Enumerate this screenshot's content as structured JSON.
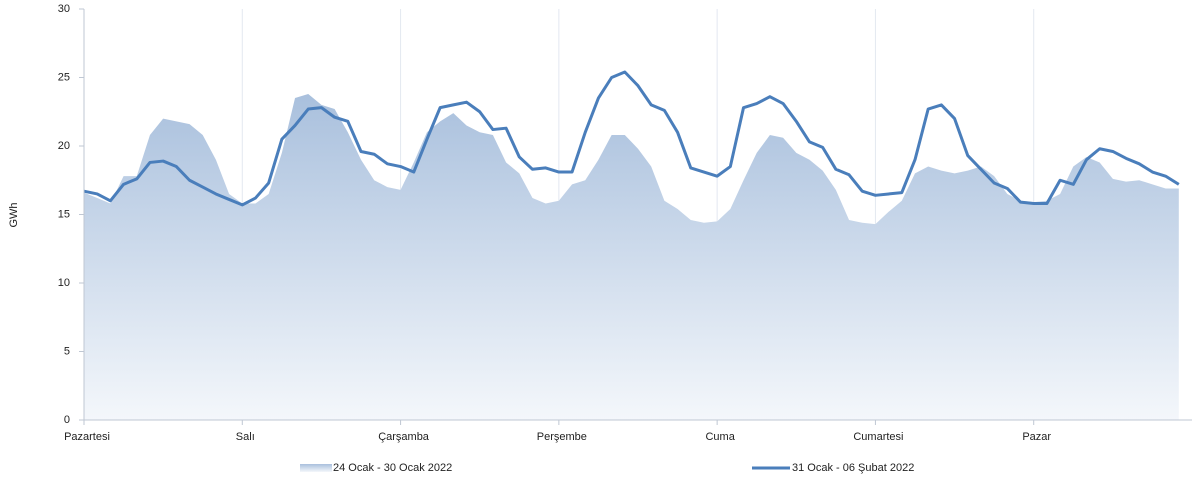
{
  "chart_data": {
    "type": "line",
    "y_label": "GWh",
    "ylim": [
      0,
      30
    ],
    "yticks": [
      0,
      5,
      10,
      15,
      20,
      25,
      30
    ],
    "categories": [
      "Pazartesi",
      null,
      null,
      null,
      null,
      null,
      null,
      null,
      null,
      null,
      null,
      null,
      "Salı",
      null,
      null,
      null,
      null,
      null,
      null,
      null,
      null,
      null,
      null,
      null,
      "Çarşamba",
      null,
      null,
      null,
      null,
      null,
      null,
      null,
      null,
      null,
      null,
      null,
      "Perşembe",
      null,
      null,
      null,
      null,
      null,
      null,
      null,
      null,
      null,
      null,
      null,
      "Cuma",
      null,
      null,
      null,
      null,
      null,
      null,
      null,
      null,
      null,
      null,
      null,
      "Cumartesi",
      null,
      null,
      null,
      null,
      null,
      null,
      null,
      null,
      null,
      null,
      null,
      "Pazar",
      null,
      null,
      null,
      null,
      null,
      null,
      null,
      null,
      null,
      null,
      null
    ],
    "series": [
      {
        "name": "24 Ocak - 30 Ocak 2022",
        "kind": "area",
        "color": "#a9c0dd",
        "values": [
          16.6,
          16.2,
          15.8,
          17.8,
          17.8,
          20.8,
          22.0,
          21.8,
          21.6,
          20.8,
          19.0,
          16.5,
          15.8,
          15.8,
          16.5,
          19.5,
          23.5,
          23.8,
          23.0,
          22.7,
          21.0,
          19.0,
          17.5,
          17.0,
          16.8,
          18.8,
          21.0,
          21.8,
          22.4,
          21.5,
          21.0,
          20.8,
          18.8,
          18.0,
          16.2,
          15.8,
          16.0,
          17.2,
          17.5,
          19.0,
          20.8,
          20.8,
          19.8,
          18.5,
          16.0,
          15.4,
          14.6,
          14.4,
          14.5,
          15.4,
          17.5,
          19.5,
          20.8,
          20.6,
          19.5,
          19.0,
          18.2,
          16.8,
          14.6,
          14.4,
          14.3,
          15.2,
          16.0,
          18.0,
          18.5,
          18.2,
          18.0,
          18.2,
          18.5,
          17.8,
          16.5,
          16.0,
          15.9,
          16.0,
          16.5,
          18.5,
          19.2,
          18.8,
          17.6,
          17.4,
          17.5,
          17.2,
          16.9,
          16.9
        ]
      },
      {
        "name": "31 Ocak - 06 Şubat 2022",
        "kind": "line",
        "color": "#4a7ebb",
        "values": [
          16.7,
          16.5,
          16.0,
          17.2,
          17.6,
          18.8,
          18.9,
          18.5,
          17.5,
          17.0,
          16.5,
          16.1,
          15.7,
          16.2,
          17.3,
          20.5,
          21.5,
          22.7,
          22.8,
          22.1,
          21.8,
          19.6,
          19.4,
          18.7,
          18.5,
          18.1,
          20.5,
          22.8,
          23.0,
          23.2,
          22.5,
          21.2,
          21.3,
          19.2,
          18.3,
          18.4,
          18.1,
          18.1,
          21.0,
          23.5,
          25.0,
          25.4,
          24.4,
          23.0,
          22.6,
          21.0,
          18.4,
          18.1,
          17.8,
          18.5,
          22.8,
          23.1,
          23.6,
          23.1,
          21.8,
          20.3,
          19.9,
          18.3,
          17.9,
          16.7,
          16.4,
          16.5,
          16.6,
          19.0,
          22.7,
          23.0,
          22.0,
          19.3,
          18.3,
          17.3,
          16.9,
          15.9,
          15.8,
          15.8,
          17.5,
          17.2,
          19.0,
          19.8,
          19.6,
          19.1,
          18.7,
          18.1,
          17.8,
          17.2
        ]
      }
    ]
  }
}
